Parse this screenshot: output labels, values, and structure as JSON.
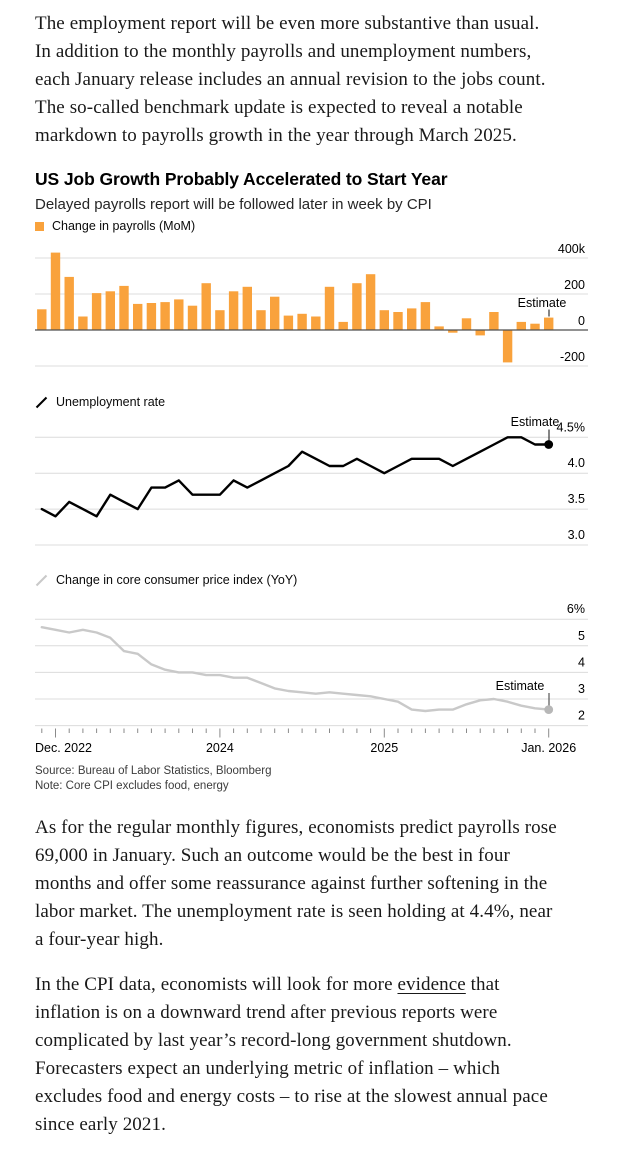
{
  "article": {
    "paragraph_1": "The employment report will be even more substantive than usual.\nIn addition to the monthly payrolls and unemployment numbers,\neach January release includes an annual revision to the jobs count.\nThe so-called benchmark update is expected to reveal a notable\nmarkdown to payrolls growth in the year through March 2025.",
    "paragraph_2": "As for the regular monthly figures, economists predict payrolls rose\n69,000 in January. Such an outcome would be the best in four\nmonths and offer some reassurance against further softening in the\nlabor market. The unemployment rate is seen holding at 4.4%, near\na four-year high.",
    "paragraph_3": {
      "line_1_before": "In the CPI data, economists will look for more ",
      "link_text": "evidence",
      "line_1_after": " that",
      "rest": "\ninflation is on a downward trend after previous reports were\ncomplicated by last year’s record-long government shutdown.\nForecasters expect an underlying metric of inflation – which\nexcludes food and energy costs – to rise at the slowest annual pace\nsince early 2021."
    }
  },
  "figure": {
    "title": "US Job Growth Probably Accelerated to Start Year",
    "subtitle": "Delayed payrolls report will be followed later in week by CPI",
    "source": "Source: Bureau of Labor Statistics, Bloomberg",
    "note": "Note: Core CPI excludes food, energy",
    "colors": {
      "bars_orange": "#f9a23c",
      "unemployment_line": "#000000",
      "cpi_line": "#c9c9c9",
      "cpi_dot": "#b7b7b7",
      "gridline": "#dcdcdc",
      "zero_axis": "#4f4f4f",
      "tick": "#8a8a8a"
    }
  },
  "chart_data": [
    {
      "type": "bar",
      "title": "Change in payrolls (MoM)",
      "unit": "thousands of jobs",
      "legend_position": "top-left",
      "grid": true,
      "axis_labels_position": "right",
      "ylim": [
        -300,
        450
      ],
      "yticks": [
        {
          "label": "400k",
          "value": 400
        },
        {
          "label": "200",
          "value": 200
        },
        {
          "label": "0",
          "value": 0
        },
        {
          "label": "-200",
          "value": -200
        }
      ],
      "categories": [
        "Dec 2022",
        "Jan 2023",
        "Feb 2023",
        "Mar 2023",
        "Apr 2023",
        "May 2023",
        "Jun 2023",
        "Jul 2023",
        "Aug 2023",
        "Sep 2023",
        "Oct 2023",
        "Nov 2023",
        "Dec 2023",
        "Jan 2024",
        "Feb 2024",
        "Mar 2024",
        "Apr 2024",
        "May 2024",
        "Jun 2024",
        "Jul 2024",
        "Aug 2024",
        "Sep 2024",
        "Oct 2024",
        "Nov 2024",
        "Dec 2024",
        "Jan 2025",
        "Feb 2025",
        "Mar 2025",
        "Apr 2025",
        "May 2025",
        "Jun 2025",
        "Jul 2025",
        "Aug 2025",
        "Sep 2025",
        "Oct 2025",
        "Nov 2025",
        "Dec 2025",
        "Jan 2026"
      ],
      "values": [
        115,
        430,
        295,
        75,
        205,
        215,
        245,
        145,
        150,
        155,
        170,
        135,
        260,
        110,
        215,
        240,
        110,
        185,
        80,
        90,
        75,
        240,
        45,
        260,
        310,
        110,
        100,
        120,
        155,
        20,
        -15,
        65,
        -30,
        100,
        -180,
        45,
        35,
        69
      ],
      "estimate": {
        "label": "Estimate",
        "month": "Jan. 2026",
        "value": 69
      }
    },
    {
      "type": "line",
      "title": "Unemployment rate",
      "unit": "percent",
      "legend_position": "top-left",
      "grid": true,
      "axis_labels_position": "right",
      "ylim": [
        2.9,
        4.65
      ],
      "yticks": [
        {
          "label": "4.5%",
          "value": 4.5
        },
        {
          "label": "4.0",
          "value": 4.0
        },
        {
          "label": "3.5",
          "value": 3.5
        },
        {
          "label": "3.0",
          "value": 3.0
        }
      ],
      "x_categories_ref": 0,
      "values": [
        3.5,
        3.4,
        3.6,
        3.5,
        3.4,
        3.7,
        3.6,
        3.5,
        3.8,
        3.8,
        3.9,
        3.7,
        3.7,
        3.7,
        3.9,
        3.8,
        3.9,
        4.0,
        4.1,
        4.3,
        4.2,
        4.1,
        4.1,
        4.2,
        4.1,
        4.0,
        4.1,
        4.2,
        4.2,
        4.2,
        4.1,
        4.2,
        4.3,
        4.4,
        4.5,
        4.5,
        4.4,
        4.4
      ],
      "estimate": {
        "label": "Estimate",
        "month": "Jan. 2026",
        "value": 4.4
      }
    },
    {
      "type": "line",
      "title": "Change in core consumer price index (YoY)",
      "unit": "percent",
      "legend_position": "top-left",
      "grid": true,
      "axis_labels_position": "right",
      "ylim": [
        1.8,
        6.3
      ],
      "yticks": [
        {
          "label": "6%",
          "value": 6
        },
        {
          "label": "5",
          "value": 5
        },
        {
          "label": "4",
          "value": 4
        },
        {
          "label": "3",
          "value": 3
        },
        {
          "label": "2",
          "value": 2
        }
      ],
      "x_categories_ref": 0,
      "values": [
        5.7,
        5.6,
        5.5,
        5.6,
        5.5,
        5.3,
        4.8,
        4.7,
        4.3,
        4.1,
        4.0,
        4.0,
        3.9,
        3.9,
        3.8,
        3.8,
        3.6,
        3.4,
        3.3,
        3.25,
        3.2,
        3.25,
        3.2,
        3.15,
        3.1,
        3.0,
        2.9,
        2.6,
        2.55,
        2.6,
        2.6,
        2.8,
        2.95,
        3.0,
        2.9,
        2.75,
        2.65,
        2.6
      ],
      "estimate": {
        "label": "Estimate",
        "month": "Jan. 2026",
        "value": 2.6
      },
      "x_axis_labels": [
        "Dec. 2022",
        "2024",
        "2025",
        "Jan. 2026"
      ]
    }
  ]
}
